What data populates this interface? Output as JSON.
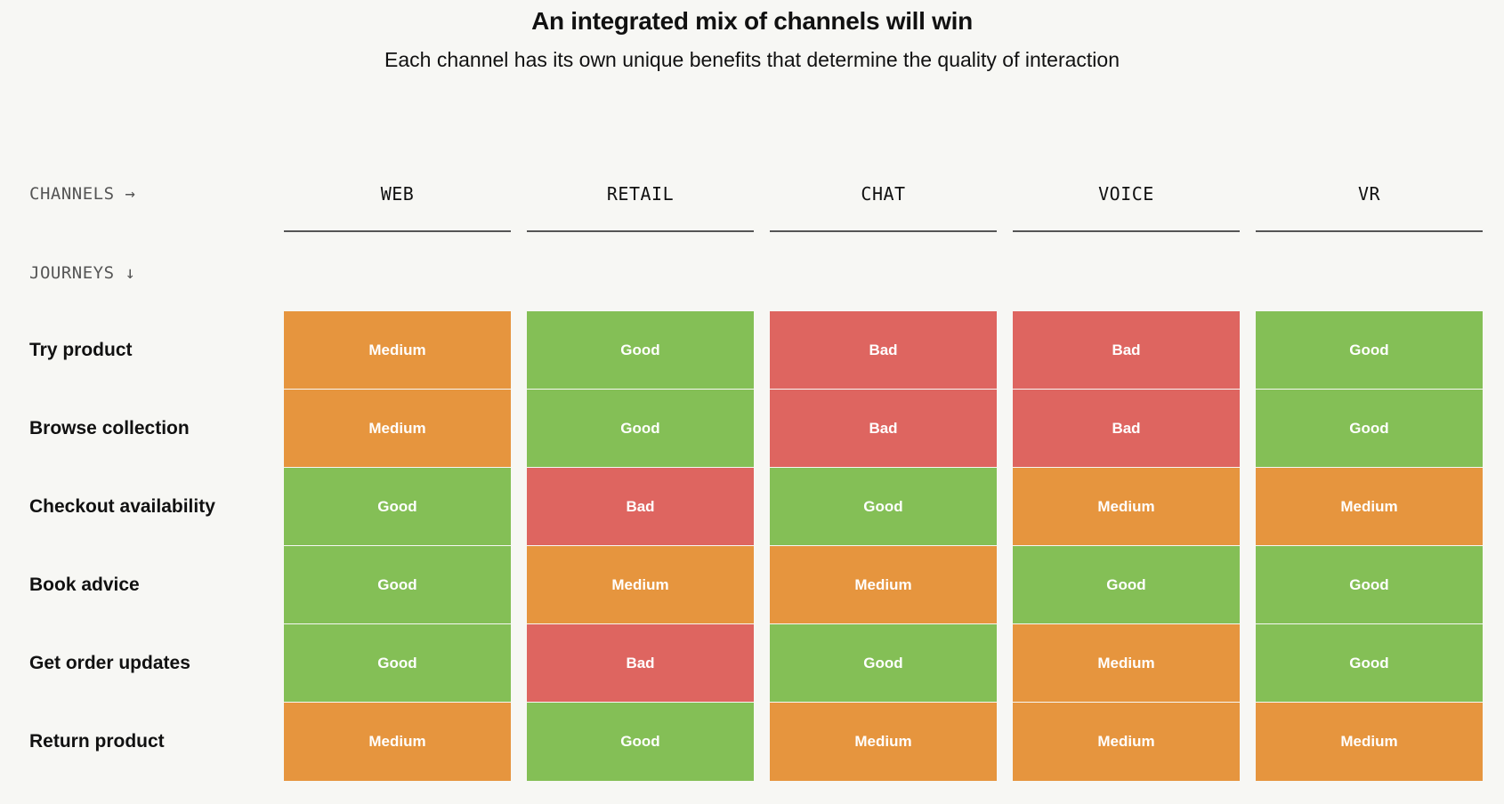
{
  "title": "An integrated mix of channels will win",
  "subtitle": "Each channel has its own unique benefits that determine the quality of interaction",
  "axis": {
    "channels_label": "CHANNELS →",
    "journeys_label": "JOURNEYS ↓"
  },
  "colors": {
    "Good": "#84bf56",
    "Medium": "#e6953e",
    "Bad": "#de6560"
  },
  "chart_data": {
    "type": "table",
    "columns": [
      "WEB",
      "RETAIL",
      "CHAT",
      "VOICE",
      "VR"
    ],
    "rows": [
      {
        "label": "Try product",
        "values": [
          "Medium",
          "Good",
          "Bad",
          "Bad",
          "Good"
        ]
      },
      {
        "label": "Browse collection",
        "values": [
          "Medium",
          "Good",
          "Bad",
          "Bad",
          "Good"
        ]
      },
      {
        "label": "Checkout availability",
        "values": [
          "Good",
          "Bad",
          "Good",
          "Medium",
          "Medium"
        ]
      },
      {
        "label": "Book advice",
        "values": [
          "Good",
          "Medium",
          "Medium",
          "Good",
          "Good"
        ]
      },
      {
        "label": "Get order updates",
        "values": [
          "Good",
          "Bad",
          "Good",
          "Medium",
          "Good"
        ]
      },
      {
        "label": "Return product",
        "values": [
          "Medium",
          "Good",
          "Medium",
          "Medium",
          "Medium"
        ]
      }
    ]
  }
}
